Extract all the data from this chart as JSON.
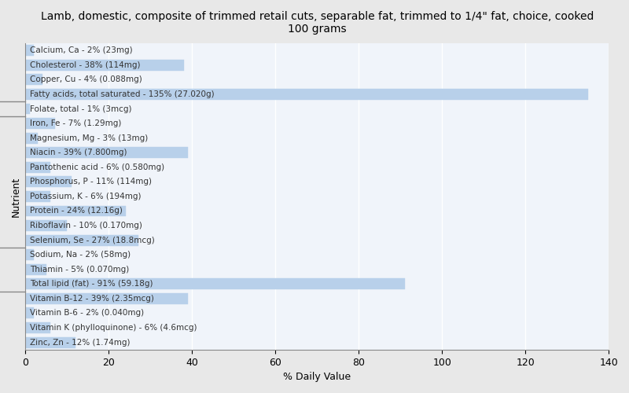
{
  "title": "Lamb, domestic, composite of trimmed retail cuts, separable fat, trimmed to 1/4\" fat, choice, cooked\n100 grams",
  "xlabel": "% Daily Value",
  "ylabel": "Nutrient",
  "background_color": "#e8e8e8",
  "plot_bg_color": "#f0f4fa",
  "bar_color": "#b8d0ea",
  "bar_edge_color": "#b8d0ea",
  "text_color": "#333333",
  "nutrients": [
    "Calcium, Ca - 2% (23mg)",
    "Cholesterol - 38% (114mg)",
    "Copper, Cu - 4% (0.088mg)",
    "Fatty acids, total saturated - 135% (27.020g)",
    "Folate, total - 1% (3mcg)",
    "Iron, Fe - 7% (1.29mg)",
    "Magnesium, Mg - 3% (13mg)",
    "Niacin - 39% (7.800mg)",
    "Pantothenic acid - 6% (0.580mg)",
    "Phosphorus, P - 11% (114mg)",
    "Potassium, K - 6% (194mg)",
    "Protein - 24% (12.16g)",
    "Riboflavin - 10% (0.170mg)",
    "Selenium, Se - 27% (18.8mcg)",
    "Sodium, Na - 2% (58mg)",
    "Thiamin - 5% (0.070mg)",
    "Total lipid (fat) - 91% (59.18g)",
    "Vitamin B-12 - 39% (2.35mcg)",
    "Vitamin B-6 - 2% (0.040mg)",
    "Vitamin K (phylloquinone) - 6% (4.6mcg)",
    "Zinc, Zn - 12% (1.74mg)"
  ],
  "values": [
    2,
    38,
    4,
    135,
    1,
    7,
    3,
    39,
    6,
    11,
    6,
    24,
    10,
    27,
    2,
    5,
    91,
    39,
    2,
    6,
    12
  ],
  "xlim": [
    0,
    140
  ],
  "xticks": [
    0,
    20,
    40,
    60,
    80,
    100,
    120,
    140
  ],
  "grid_color": "#ffffff",
  "title_fontsize": 10,
  "label_fontsize": 7.5,
  "tick_fontsize": 9
}
